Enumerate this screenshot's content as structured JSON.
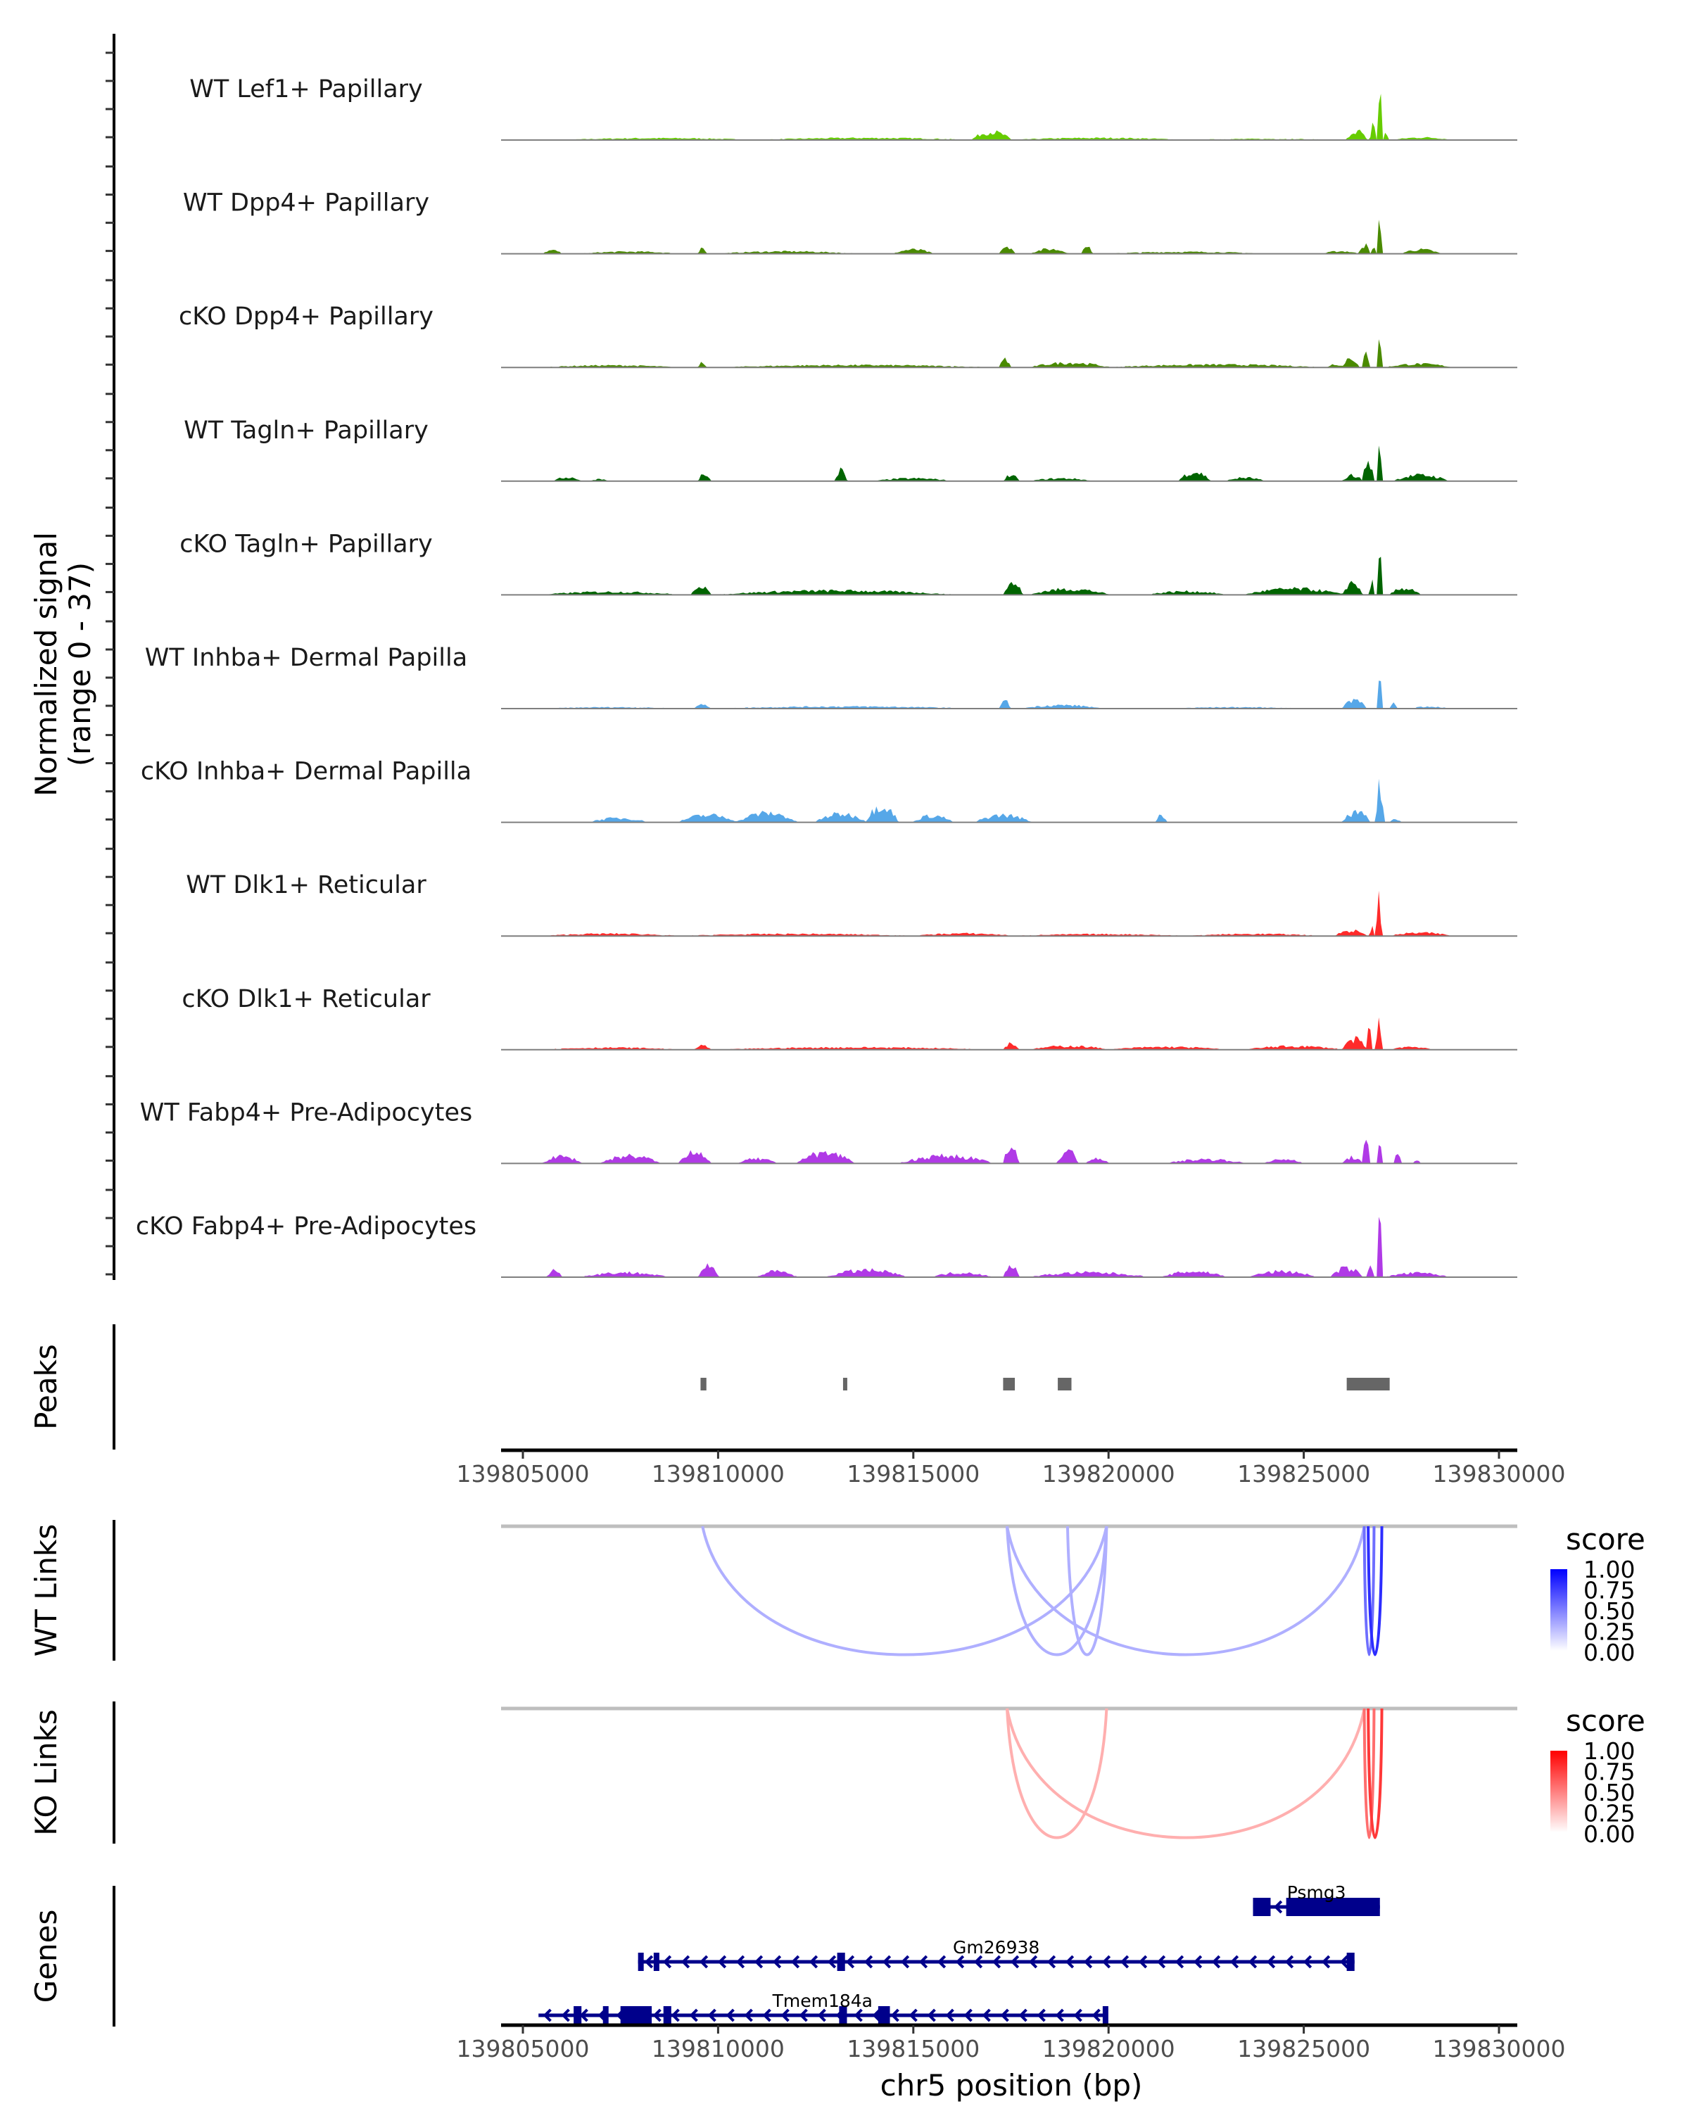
{
  "chart_data": {
    "type": "area",
    "title": "",
    "xlabel": "chr5 position (bp)",
    "coverage_ylabel": [
      "Normalized signal",
      "(range 0 - 37)"
    ],
    "ylim": [
      0,
      37
    ],
    "xlim": [
      139804440,
      139830100
    ],
    "x_ticks": [
      139805000,
      139810000,
      139815000,
      139820000,
      139825000,
      139830000
    ],
    "x_tick_labels": [
      "139805000",
      "139810000",
      "139815000",
      "139820000",
      "139825000",
      "139830000"
    ],
    "series": [
      {
        "name": "WT Lef1+ Papillary",
        "color": "#66cc00",
        "regions": [
          [
            139806000,
            139811000,
            0.8
          ],
          [
            139811000,
            139816500,
            0.9
          ],
          [
            139816500,
            139817500,
            3.5
          ],
          [
            139817500,
            139822000,
            0.9
          ],
          [
            139822000,
            139826000,
            0.5
          ],
          [
            139826100,
            139826600,
            4.2
          ],
          [
            139826700,
            139826850,
            7.8
          ],
          [
            139826900,
            139827000,
            22.8
          ],
          [
            139827050,
            139827150,
            4.0
          ],
          [
            139827300,
            139828800,
            1.1
          ]
        ]
      },
      {
        "name": "WT Dpp4+ Papillary",
        "color": "#4a8a00",
        "regions": [
          [
            139805500,
            139806000,
            1.5
          ],
          [
            139806500,
            139809000,
            0.9
          ],
          [
            139809500,
            139809700,
            2.3
          ],
          [
            139810000,
            139813500,
            1.0
          ],
          [
            139814500,
            139815500,
            1.8
          ],
          [
            139817200,
            139817600,
            3.5
          ],
          [
            139818000,
            139819000,
            2.0
          ],
          [
            139819300,
            139819600,
            2.8
          ],
          [
            139820000,
            139824000,
            0.8
          ],
          [
            139825500,
            139826400,
            1.1
          ],
          [
            139826400,
            139826700,
            3.9
          ],
          [
            139826750,
            139826850,
            4.3
          ],
          [
            139826900,
            139827000,
            17.0
          ],
          [
            139827500,
            139828500,
            1.8
          ]
        ]
      },
      {
        "name": "cKO Dpp4+ Papillary",
        "color": "#4a8a00",
        "regions": [
          [
            139805500,
            139809000,
            0.9
          ],
          [
            139809500,
            139809700,
            2.3
          ],
          [
            139810000,
            139817000,
            1.0
          ],
          [
            139817200,
            139817500,
            3.5
          ],
          [
            139818000,
            139820000,
            2.0
          ],
          [
            139820000,
            139825500,
            1.2
          ],
          [
            139825600,
            139826000,
            1.5
          ],
          [
            139826000,
            139826400,
            4.5
          ],
          [
            139826500,
            139826700,
            6.2
          ],
          [
            139826900,
            139827000,
            14.5
          ],
          [
            139827100,
            139828800,
            1.5
          ]
        ]
      },
      {
        "name": "WT Tagln+ Papillary",
        "color": "#006400",
        "regions": [
          [
            139805800,
            139806500,
            1.7
          ],
          [
            139806700,
            139807200,
            0.9
          ],
          [
            139809500,
            139809800,
            3.5
          ],
          [
            139813000,
            139813300,
            5.0
          ],
          [
            139814000,
            139816000,
            1.2
          ],
          [
            139817300,
            139817700,
            2.6
          ],
          [
            139818000,
            139819600,
            1.2
          ],
          [
            139821800,
            139822600,
            4.0
          ],
          [
            139823000,
            139824000,
            1.5
          ],
          [
            139826000,
            139826500,
            2.6
          ],
          [
            139826500,
            139826800,
            8.2
          ],
          [
            139826900,
            139827000,
            17.3
          ],
          [
            139827300,
            139828700,
            2.6
          ]
        ]
      },
      {
        "name": "cKO Tagln+ Papillary",
        "color": "#006400",
        "regions": [
          [
            139805500,
            139809000,
            1.3
          ],
          [
            139809300,
            139809800,
            4.3
          ],
          [
            139810000,
            139816000,
            1.8
          ],
          [
            139817300,
            139817800,
            4.9
          ],
          [
            139818000,
            139820000,
            2.5
          ],
          [
            139821000,
            139823000,
            1.5
          ],
          [
            139823500,
            139826000,
            2.6
          ],
          [
            139826000,
            139826500,
            5.4
          ],
          [
            139826700,
            139826800,
            9.4
          ],
          [
            139826900,
            139827000,
            18.5
          ],
          [
            139827200,
            139828000,
            2.9
          ]
        ]
      },
      {
        "name": "WT Inhba+ Dermal Papilla",
        "color": "#56a7e8",
        "regions": [
          [
            139805500,
            139809000,
            0.6
          ],
          [
            139809400,
            139809800,
            1.8
          ],
          [
            139810000,
            139816500,
            0.9
          ],
          [
            139817200,
            139817500,
            3.1
          ],
          [
            139817800,
            139819800,
            1.5
          ],
          [
            139821500,
            139825000,
            0.6
          ],
          [
            139826000,
            139826600,
            4.2
          ],
          [
            139826900,
            139827000,
            14.6
          ],
          [
            139827200,
            139827400,
            2.3
          ],
          [
            139827700,
            139828700,
            0.9
          ]
        ]
      },
      {
        "name": "cKO Inhba+ Dermal Papilla",
        "color": "#56a7e8",
        "regions": [
          [
            139806700,
            139808200,
            1.8
          ],
          [
            139809000,
            139810500,
            3.1
          ],
          [
            139810500,
            139812000,
            4.0
          ],
          [
            139812500,
            139813800,
            3.6
          ],
          [
            139813800,
            139814600,
            7.3
          ],
          [
            139815000,
            139816000,
            2.9
          ],
          [
            139816600,
            139818000,
            3.1
          ],
          [
            139821200,
            139821500,
            3.1
          ],
          [
            139826000,
            139826700,
            4.3
          ],
          [
            139826850,
            139827050,
            15.5
          ],
          [
            139827200,
            139827500,
            1.5
          ]
        ]
      },
      {
        "name": "WT Dlk1+ Reticular",
        "color": "#ff2a2a",
        "regions": [
          [
            139805500,
            139809000,
            1.0
          ],
          [
            139809000,
            139815000,
            0.9
          ],
          [
            139815000,
            139817600,
            1.1
          ],
          [
            139817600,
            139822000,
            0.8
          ],
          [
            139822000,
            139825500,
            0.9
          ],
          [
            139825800,
            139826600,
            2.4
          ],
          [
            139826700,
            139826800,
            6.7
          ],
          [
            139826850,
            139827000,
            15.4
          ],
          [
            139827200,
            139828800,
            1.4
          ]
        ]
      },
      {
        "name": "cKO Dlk1+ Reticular",
        "color": "#ff2a2a",
        "regions": [
          [
            139805500,
            139809000,
            0.9
          ],
          [
            139809400,
            139809800,
            2.0
          ],
          [
            139810000,
            139817000,
            1.0
          ],
          [
            139817300,
            139817700,
            2.8
          ],
          [
            139818000,
            139820000,
            1.6
          ],
          [
            139820000,
            139823000,
            1.2
          ],
          [
            139823500,
            139826000,
            1.5
          ],
          [
            139826000,
            139826600,
            4.5
          ],
          [
            139826600,
            139826750,
            11.0
          ],
          [
            139826850,
            139827000,
            12.5
          ],
          [
            139827200,
            139828300,
            1.3
          ]
        ]
      },
      {
        "name": "WT Fabp4+ Pre-Adipocytes",
        "color": "#b03ae6",
        "regions": [
          [
            139805500,
            139806500,
            3.0
          ],
          [
            139807000,
            139808500,
            3.3
          ],
          [
            139809000,
            139809800,
            5.5
          ],
          [
            139810500,
            139811500,
            2.0
          ],
          [
            139812000,
            139813500,
            4.5
          ],
          [
            139814700,
            139817000,
            3.3
          ],
          [
            139817300,
            139817700,
            6.8
          ],
          [
            139818700,
            139819200,
            5.8
          ],
          [
            139819400,
            139820000,
            2.0
          ],
          [
            139821500,
            139823500,
            1.8
          ],
          [
            139824000,
            139825000,
            1.8
          ],
          [
            139826000,
            139826500,
            2.7
          ],
          [
            139826500,
            139826700,
            8.7
          ],
          [
            139826900,
            139827000,
            11.9
          ],
          [
            139827300,
            139827500,
            4.4
          ],
          [
            139827800,
            139828000,
            1.2
          ]
        ]
      },
      {
        "name": "cKO Fabp4+ Pre-Adipocytes",
        "color": "#b03ae6",
        "regions": [
          [
            139805600,
            139806000,
            3.0
          ],
          [
            139806500,
            139808700,
            2.0
          ],
          [
            139809500,
            139810000,
            5.1
          ],
          [
            139811000,
            139812000,
            2.5
          ],
          [
            139812800,
            139814800,
            3.0
          ],
          [
            139815500,
            139817000,
            2.0
          ],
          [
            139817300,
            139817700,
            5.7
          ],
          [
            139818000,
            139821000,
            2.0
          ],
          [
            139821400,
            139823000,
            2.5
          ],
          [
            139823600,
            139825300,
            2.5
          ],
          [
            139825700,
            139826500,
            3.9
          ],
          [
            139826600,
            139826800,
            5.5
          ],
          [
            139826900,
            139827000,
            37.0
          ],
          [
            139827100,
            139828700,
            1.8
          ]
        ]
      }
    ],
    "peaks": {
      "label": "Peaks",
      "color": "#666666",
      "intervals": [
        [
          139809550,
          139809700
        ],
        [
          139813200,
          139813300
        ],
        [
          139817300,
          139817600
        ],
        [
          139818700,
          139819050
        ],
        [
          139826100,
          139827200
        ]
      ]
    },
    "links": [
      {
        "label": "WT Links",
        "legend_title": "score",
        "color_high": "#0000ff",
        "color_low": "#ffffff",
        "legend_ticks": [
          "1.00",
          "0.75",
          "0.50",
          "0.25",
          "0.00"
        ],
        "arcs": [
          {
            "start": 139809600,
            "end": 139819950,
            "score": 0.25
          },
          {
            "start": 139817400,
            "end": 139826550,
            "score": 0.25
          },
          {
            "start": 139817400,
            "end": 139819950,
            "score": 0.25
          },
          {
            "start": 139818950,
            "end": 139819950,
            "score": 0.25
          },
          {
            "start": 139826550,
            "end": 139826800,
            "score": 0.55
          },
          {
            "start": 139826650,
            "end": 139827000,
            "score": 0.85
          }
        ]
      },
      {
        "label": "KO Links",
        "legend_title": "score",
        "color_high": "#ff0000",
        "color_low": "#ffffff",
        "legend_ticks": [
          "1.00",
          "0.75",
          "0.50",
          "0.25",
          "0.00"
        ],
        "arcs": [
          {
            "start": 139817400,
            "end": 139819950,
            "score": 0.25
          },
          {
            "start": 139817400,
            "end": 139826550,
            "score": 0.25
          },
          {
            "start": 139826550,
            "end": 139826800,
            "score": 0.55
          },
          {
            "start": 139826650,
            "end": 139827000,
            "score": 0.8
          }
        ]
      }
    ],
    "genes": {
      "label": "Genes",
      "color": "#00008b",
      "items": [
        {
          "name": "Psmg3",
          "start": 139823700,
          "end": 139826950,
          "strand": "-",
          "exons": [
            [
              139823700,
              139824150
            ],
            [
              139824550,
              139826950
            ]
          ]
        },
        {
          "name": "Gm26938",
          "start": 139807950,
          "end": 139826300,
          "strand": "-",
          "exons": [
            [
              139807950,
              139808000
            ],
            [
              139808350,
              139808450
            ],
            [
              139813050,
              139813250
            ],
            [
              139826100,
              139826300
            ]
          ]
        },
        {
          "name": "Tmem184a",
          "start": 139805400,
          "end": 139819950,
          "strand": "-",
          "exons": [
            [
              139806300,
              139806500
            ],
            [
              139807050,
              139807150
            ],
            [
              139807500,
              139808300
            ],
            [
              139808600,
              139808800
            ],
            [
              139813100,
              139813300
            ],
            [
              139814100,
              139814400
            ],
            [
              139819850,
              139819950
            ]
          ]
        }
      ]
    }
  }
}
